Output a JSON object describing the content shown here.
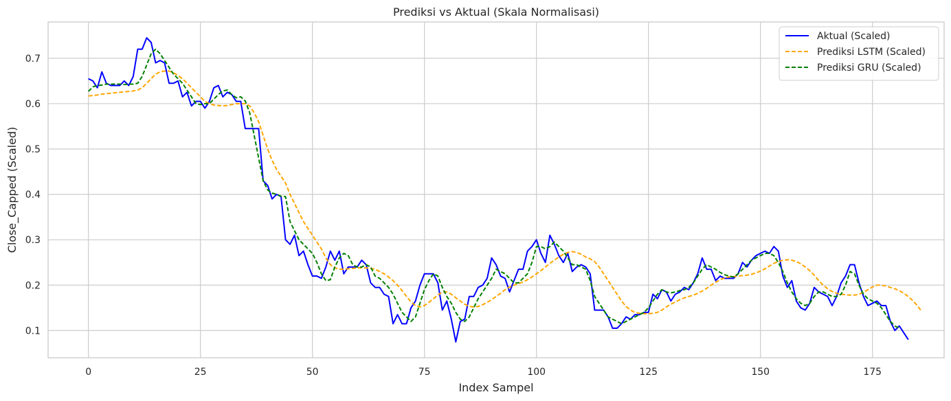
{
  "chart_data": {
    "type": "line",
    "title": "Prediksi vs Aktual (Skala Normalisasi)",
    "xlabel": "Index Sampel",
    "ylabel": "Close_Capped (Scaled)",
    "xlim": [
      -9,
      191
    ],
    "ylim": [
      0.04,
      0.78
    ],
    "xticks": [
      0,
      25,
      50,
      75,
      100,
      125,
      150,
      175
    ],
    "yticks": [
      0.1,
      0.2,
      0.3,
      0.4,
      0.5,
      0.6,
      0.7
    ],
    "grid": true,
    "legend_position": "top-right",
    "series": [
      {
        "name": "Aktual (Scaled)",
        "color": "#0000ff",
        "style": "solid",
        "x_start": 0,
        "values": [
          0.655,
          0.65,
          0.635,
          0.67,
          0.645,
          0.64,
          0.64,
          0.64,
          0.65,
          0.64,
          0.66,
          0.72,
          0.72,
          0.745,
          0.735,
          0.69,
          0.695,
          0.69,
          0.645,
          0.645,
          0.65,
          0.615,
          0.625,
          0.595,
          0.605,
          0.605,
          0.59,
          0.605,
          0.635,
          0.64,
          0.615,
          0.625,
          0.62,
          0.605,
          0.605,
          0.545,
          0.545,
          0.545,
          0.545,
          0.43,
          0.42,
          0.39,
          0.4,
          0.395,
          0.3,
          0.29,
          0.31,
          0.265,
          0.275,
          0.245,
          0.22,
          0.22,
          0.215,
          0.24,
          0.275,
          0.255,
          0.275,
          0.225,
          0.24,
          0.24,
          0.24,
          0.255,
          0.245,
          0.205,
          0.195,
          0.195,
          0.18,
          0.175,
          0.115,
          0.135,
          0.115,
          0.115,
          0.15,
          0.165,
          0.2,
          0.225,
          0.225,
          0.225,
          0.205,
          0.145,
          0.165,
          0.125,
          0.075,
          0.12,
          0.125,
          0.175,
          0.175,
          0.195,
          0.2,
          0.215,
          0.26,
          0.245,
          0.22,
          0.215,
          0.185,
          0.21,
          0.235,
          0.235,
          0.275,
          0.285,
          0.3,
          0.27,
          0.25,
          0.31,
          0.29,
          0.265,
          0.25,
          0.27,
          0.23,
          0.24,
          0.245,
          0.24,
          0.225,
          0.145,
          0.145,
          0.145,
          0.13,
          0.105,
          0.105,
          0.115,
          0.13,
          0.125,
          0.135,
          0.135,
          0.14,
          0.14,
          0.18,
          0.17,
          0.19,
          0.185,
          0.165,
          0.18,
          0.185,
          0.195,
          0.19,
          0.205,
          0.225,
          0.26,
          0.235,
          0.235,
          0.21,
          0.22,
          0.215,
          0.215,
          0.215,
          0.225,
          0.25,
          0.24,
          0.255,
          0.265,
          0.27,
          0.275,
          0.27,
          0.285,
          0.275,
          0.22,
          0.195,
          0.21,
          0.165,
          0.15,
          0.145,
          0.16,
          0.195,
          0.185,
          0.18,
          0.175,
          0.155,
          0.175,
          0.205,
          0.22,
          0.245,
          0.245,
          0.205,
          0.175,
          0.155,
          0.16,
          0.165,
          0.155,
          0.155,
          0.12,
          0.1,
          0.11,
          0.095,
          0.08
        ]
      },
      {
        "name": "Prediksi LSTM (Scaled)",
        "color": "#ffa500",
        "style": "dashed",
        "x_start": 0,
        "values": [
          0.617,
          0.618,
          0.619,
          0.621,
          0.622,
          0.623,
          0.624,
          0.625,
          0.626,
          0.627,
          0.628,
          0.63,
          0.635,
          0.645,
          0.655,
          0.665,
          0.67,
          0.672,
          0.672,
          0.668,
          0.662,
          0.655,
          0.645,
          0.635,
          0.625,
          0.615,
          0.605,
          0.6,
          0.597,
          0.596,
          0.595,
          0.596,
          0.598,
          0.6,
          0.6,
          0.6,
          0.595,
          0.58,
          0.56,
          0.53,
          0.5,
          0.475,
          0.455,
          0.44,
          0.425,
          0.4,
          0.38,
          0.36,
          0.34,
          0.325,
          0.31,
          0.295,
          0.28,
          0.26,
          0.245,
          0.238,
          0.235,
          0.235,
          0.236,
          0.237,
          0.238,
          0.238,
          0.238,
          0.237,
          0.235,
          0.23,
          0.225,
          0.218,
          0.21,
          0.2,
          0.188,
          0.175,
          0.163,
          0.155,
          0.152,
          0.155,
          0.162,
          0.17,
          0.178,
          0.185,
          0.185,
          0.18,
          0.172,
          0.165,
          0.158,
          0.153,
          0.152,
          0.153,
          0.157,
          0.162,
          0.168,
          0.175,
          0.182,
          0.19,
          0.196,
          0.2,
          0.203,
          0.207,
          0.212,
          0.218,
          0.225,
          0.232,
          0.24,
          0.248,
          0.255,
          0.262,
          0.268,
          0.272,
          0.274,
          0.272,
          0.268,
          0.262,
          0.258,
          0.252,
          0.24,
          0.225,
          0.21,
          0.195,
          0.18,
          0.165,
          0.153,
          0.145,
          0.14,
          0.138,
          0.137,
          0.137,
          0.138,
          0.14,
          0.145,
          0.152,
          0.158,
          0.163,
          0.168,
          0.172,
          0.175,
          0.178,
          0.182,
          0.187,
          0.193,
          0.2,
          0.206,
          0.212,
          0.216,
          0.218,
          0.219,
          0.22,
          0.221,
          0.222,
          0.224,
          0.227,
          0.231,
          0.236,
          0.242,
          0.248,
          0.252,
          0.255,
          0.256,
          0.255,
          0.252,
          0.247,
          0.24,
          0.232,
          0.222,
          0.21,
          0.2,
          0.192,
          0.186,
          0.182,
          0.18,
          0.179,
          0.178,
          0.178,
          0.18,
          0.184,
          0.19,
          0.196,
          0.2,
          0.2,
          0.198,
          0.195,
          0.192,
          0.188,
          0.182,
          0.175,
          0.166,
          0.155,
          0.142
        ]
      },
      {
        "name": "Prediksi GRU (Scaled)",
        "color": "#008000",
        "style": "dashed",
        "x_start": 0,
        "values": [
          0.627,
          0.637,
          0.64,
          0.641,
          0.643,
          0.643,
          0.643,
          0.643,
          0.642,
          0.643,
          0.643,
          0.645,
          0.66,
          0.685,
          0.71,
          0.72,
          0.71,
          0.695,
          0.68,
          0.665,
          0.655,
          0.645,
          0.63,
          0.615,
          0.6,
          0.598,
          0.6,
          0.6,
          0.61,
          0.62,
          0.628,
          0.63,
          0.62,
          0.613,
          0.615,
          0.606,
          0.58,
          0.53,
          0.48,
          0.43,
          0.41,
          0.403,
          0.4,
          0.396,
          0.395,
          0.34,
          0.32,
          0.3,
          0.29,
          0.28,
          0.27,
          0.25,
          0.225,
          0.21,
          0.212,
          0.24,
          0.26,
          0.27,
          0.265,
          0.245,
          0.24,
          0.24,
          0.245,
          0.24,
          0.22,
          0.215,
          0.205,
          0.195,
          0.18,
          0.16,
          0.14,
          0.13,
          0.12,
          0.13,
          0.16,
          0.19,
          0.21,
          0.225,
          0.22,
          0.195,
          0.175,
          0.16,
          0.14,
          0.125,
          0.12,
          0.13,
          0.15,
          0.17,
          0.185,
          0.2,
          0.215,
          0.235,
          0.23,
          0.225,
          0.215,
          0.205,
          0.205,
          0.215,
          0.225,
          0.25,
          0.285,
          0.285,
          0.28,
          0.285,
          0.295,
          0.285,
          0.275,
          0.26,
          0.245,
          0.245,
          0.24,
          0.235,
          0.21,
          0.175,
          0.16,
          0.145,
          0.13,
          0.125,
          0.12,
          0.115,
          0.12,
          0.125,
          0.13,
          0.135,
          0.14,
          0.15,
          0.165,
          0.18,
          0.19,
          0.185,
          0.183,
          0.185,
          0.188,
          0.19,
          0.195,
          0.205,
          0.22,
          0.235,
          0.245,
          0.24,
          0.235,
          0.228,
          0.223,
          0.22,
          0.218,
          0.225,
          0.235,
          0.245,
          0.255,
          0.26,
          0.265,
          0.27,
          0.27,
          0.265,
          0.25,
          0.23,
          0.205,
          0.185,
          0.17,
          0.16,
          0.155,
          0.16,
          0.175,
          0.185,
          0.185,
          0.18,
          0.175,
          0.175,
          0.18,
          0.2,
          0.23,
          0.225,
          0.2,
          0.18,
          0.17,
          0.165,
          0.16,
          0.15,
          0.135,
          0.12,
          0.11,
          0.105
        ]
      }
    ]
  }
}
